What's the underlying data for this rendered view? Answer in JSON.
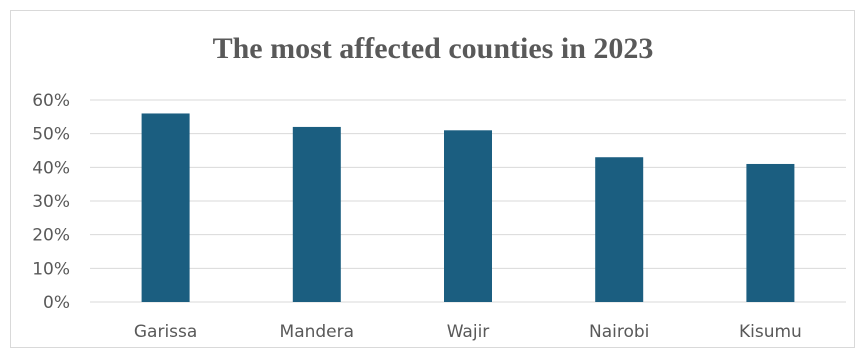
{
  "chart_data": {
    "type": "bar",
    "title": "The most affected counties in 2023",
    "categories": [
      "Garissa",
      "Mandera",
      "Wajir",
      "Nairobi",
      "Kisumu"
    ],
    "values": [
      0.56,
      0.52,
      0.51,
      0.43,
      0.41
    ],
    "ylim": [
      0,
      0.6
    ],
    "y_ticks": [
      "0%",
      "10%",
      "20%",
      "30%",
      "40%",
      "50%",
      "60%"
    ],
    "xlabel": "",
    "ylabel": "",
    "grid": true,
    "legend": "none",
    "bar_color": "#1b5e80",
    "grid_color": "#d9d9d9"
  }
}
